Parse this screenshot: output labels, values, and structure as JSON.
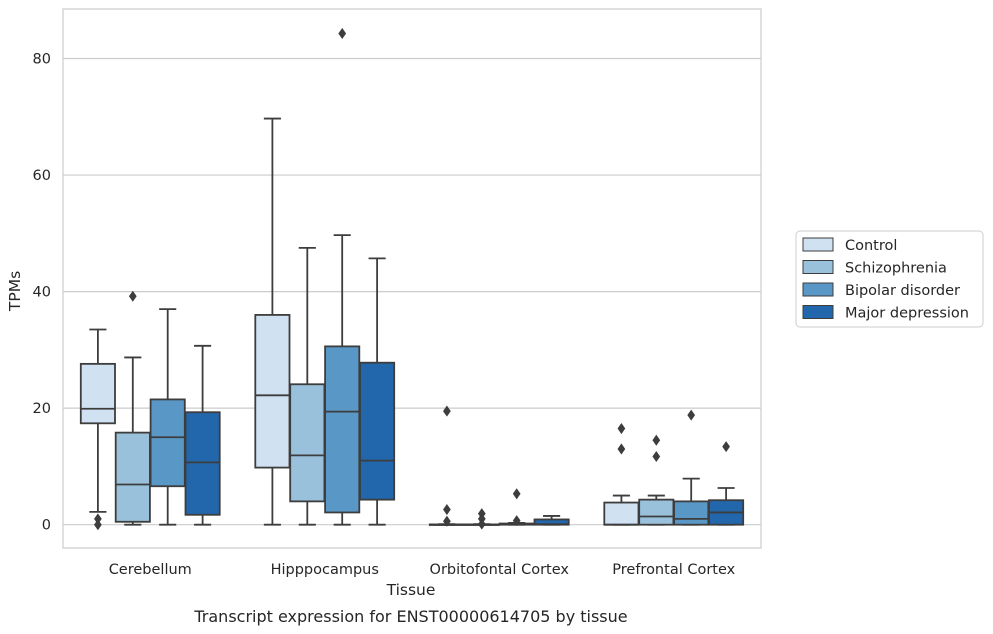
{
  "caption": "Transcript expression for ENST00000614705 by tissue",
  "chart_data": {
    "type": "box",
    "title": "",
    "xlabel": "Tissue",
    "ylabel": "TPMs",
    "ylim": [
      -4,
      88.5
    ],
    "yticks": [
      0,
      20,
      40,
      60,
      80
    ],
    "grid": "horizontal",
    "legend_position": "right",
    "categories": [
      "Cerebellum",
      "Hipppocampus",
      "Orbitofontal Cortex",
      "Prefrontal Cortex"
    ],
    "series": [
      {
        "name": "Control",
        "color": "#d0e1f2",
        "boxes": [
          {
            "whislo": 2.2,
            "q1": 17.4,
            "med": 19.9,
            "q3": 27.6,
            "whishi": 33.5,
            "fliers": [
              1.0,
              0.0
            ]
          },
          {
            "whislo": 0.0,
            "q1": 9.8,
            "med": 22.2,
            "q3": 36.0,
            "whishi": 69.7,
            "fliers": []
          },
          {
            "whislo": 0.0,
            "q1": 0.0,
            "med": 0.0,
            "q3": 0.05,
            "whishi": 0.1,
            "fliers": [
              19.5,
              2.6,
              0.6
            ]
          },
          {
            "whislo": 0.0,
            "q1": 0.0,
            "med": 0.0,
            "q3": 3.8,
            "whishi": 5.0,
            "fliers": [
              16.5,
              13.0
            ]
          }
        ]
      },
      {
        "name": "Schizophrenia",
        "color": "#9ac1db",
        "boxes": [
          {
            "whislo": 0.0,
            "q1": 0.5,
            "med": 6.9,
            "q3": 15.8,
            "whishi": 28.7,
            "fliers": [
              39.2
            ]
          },
          {
            "whislo": 0.0,
            "q1": 4.0,
            "med": 11.9,
            "q3": 24.1,
            "whishi": 47.5,
            "fliers": []
          },
          {
            "whislo": 0.0,
            "q1": 0.0,
            "med": 0.0,
            "q3": 0.05,
            "whishi": 0.1,
            "fliers": [
              1.9,
              1.0,
              0.1
            ]
          },
          {
            "whislo": 0.0,
            "q1": 0.0,
            "med": 1.4,
            "q3": 4.3,
            "whishi": 5.0,
            "fliers": [
              14.5,
              11.7
            ]
          }
        ]
      },
      {
        "name": "Bipolar disorder",
        "color": "#5997c7",
        "boxes": [
          {
            "whislo": 0.0,
            "q1": 6.6,
            "med": 15.0,
            "q3": 21.5,
            "whishi": 37.0,
            "fliers": []
          },
          {
            "whislo": 0.0,
            "q1": 2.1,
            "med": 19.4,
            "q3": 30.6,
            "whishi": 49.7,
            "fliers": [
              84.3
            ]
          },
          {
            "whislo": 0.0,
            "q1": 0.0,
            "med": 0.1,
            "q3": 0.2,
            "whishi": 0.3,
            "fliers": [
              5.3,
              0.7
            ]
          },
          {
            "whislo": 0.0,
            "q1": 0.0,
            "med": 1.0,
            "q3": 4.0,
            "whishi": 7.9,
            "fliers": [
              18.8
            ]
          }
        ]
      },
      {
        "name": "Major depression",
        "color": "#2266ab",
        "boxes": [
          {
            "whislo": 0.0,
            "q1": 1.7,
            "med": 10.7,
            "q3": 19.3,
            "whishi": 30.7,
            "fliers": []
          },
          {
            "whislo": 0.0,
            "q1": 4.3,
            "med": 11.0,
            "q3": 27.8,
            "whishi": 45.7,
            "fliers": []
          },
          {
            "whislo": 0.0,
            "q1": 0.0,
            "med": 0.1,
            "q3": 0.9,
            "whishi": 1.5,
            "fliers": []
          },
          {
            "whislo": 0.0,
            "q1": 0.0,
            "med": 2.1,
            "q3": 4.2,
            "whishi": 6.3,
            "fliers": [
              13.4
            ]
          }
        ]
      }
    ]
  }
}
